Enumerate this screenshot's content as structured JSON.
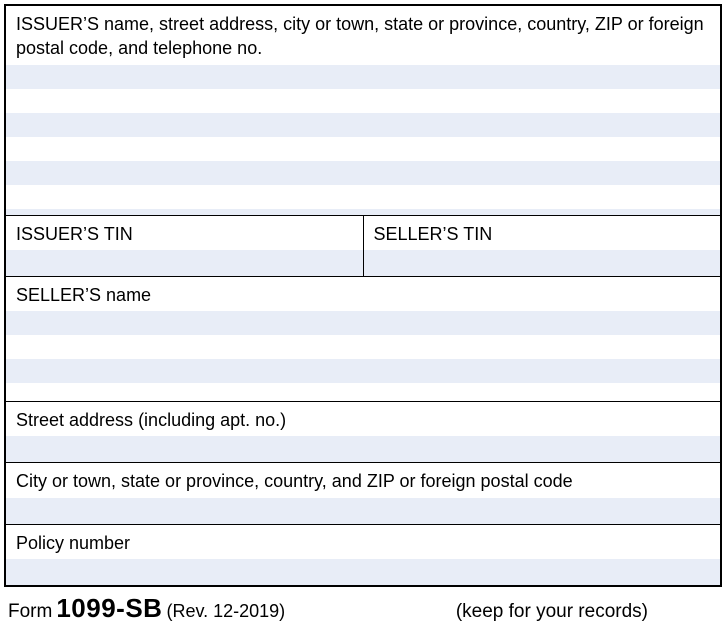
{
  "colors": {
    "border": "#000000",
    "text": "#000000",
    "fill_band": "#e8edf7",
    "background": "#ffffff"
  },
  "typography": {
    "family": "Arial, Helvetica, sans-serif",
    "label_fontsize": 18,
    "footer_form_fontsize": 19,
    "footer_number_fontsize": 26,
    "footer_number_weight": 700
  },
  "fields": {
    "issuer_address": {
      "label": "ISSUER’S name, street address, city or town, state or province, country, ZIP or foreign postal code, and telephone no.",
      "value": ""
    },
    "issuer_tin": {
      "label": "ISSUER’S TIN",
      "value": ""
    },
    "seller_tin": {
      "label": "SELLER’S TIN",
      "value": ""
    },
    "seller_name": {
      "label": "SELLER’S name",
      "value": ""
    },
    "street": {
      "label": "Street address (including apt. no.)",
      "value": ""
    },
    "city": {
      "label": "City or town, state or province, country, and ZIP or foreign postal code",
      "value": ""
    },
    "policy": {
      "label": "Policy number",
      "value": ""
    }
  },
  "footer": {
    "form_word": "Form",
    "form_number": "1099-SB",
    "revision": "(Rev. 12-2019)",
    "keep_text": "(keep for your records)"
  }
}
